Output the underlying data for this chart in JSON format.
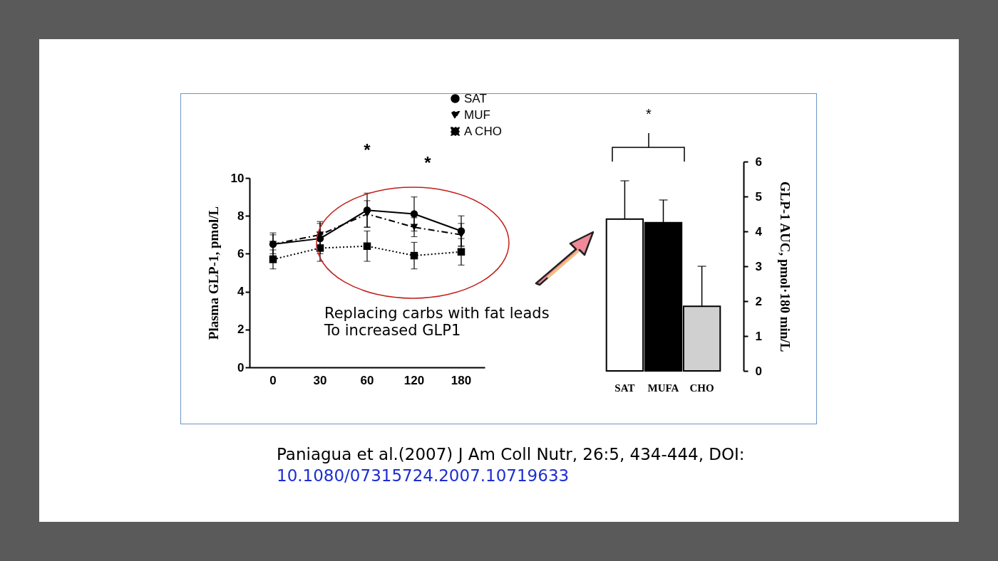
{
  "chart_data": [
    {
      "type": "line",
      "ylabel": "Plasma GLP-1, pmol/L",
      "categories": [
        "0",
        "30",
        "60",
        "120",
        "180"
      ],
      "ylim": [
        0,
        10
      ],
      "yticks": [
        0,
        2,
        4,
        6,
        8,
        10
      ],
      "grid": false,
      "legend": "top right",
      "series": [
        {
          "name": "SAT",
          "color": "#000000",
          "marker": "circle",
          "line_style": "solid",
          "values": [
            6.5,
            6.8,
            8.3,
            8.1,
            7.2
          ],
          "errors": [
            0.6,
            0.8,
            0.9,
            0.9,
            0.8
          ]
        },
        {
          "name": "MUF",
          "color": "#000000",
          "marker": "triangle",
          "line_style": "dashed",
          "values": [
            6.5,
            7.0,
            8.1,
            7.4,
            7.0
          ],
          "errors": [
            0.5,
            0.7,
            0.7,
            0.5,
            0.6
          ]
        },
        {
          "name": "A CHO",
          "color": "#000000",
          "marker": "square",
          "line_style": "dotted",
          "values": [
            5.7,
            6.3,
            6.4,
            5.9,
            6.1
          ],
          "errors": [
            0.5,
            0.7,
            0.8,
            0.7,
            0.7
          ]
        }
      ],
      "annotations": [
        "*",
        "*",
        "Replacing carbs with fat leads\nTo increased GLP1",
        "Paniagua et al.(2007) J Am Coll Nutr, 26:5, 434-444, DOI:",
        "10.1080/07315724.2007.10719633"
      ]
    },
    {
      "type": "bar",
      "ylabel": "GLP-1 AUC, pmol·180 min/L",
      "categories": [
        "SAT",
        "MUFA",
        "CHO"
      ],
      "values": [
        4.35,
        4.25,
        1.85
      ],
      "colors": [
        "#ffffff",
        "#000000",
        "#d0d0d0"
      ],
      "errors": [
        [
          4.35,
          5.45
        ],
        [
          4.25,
          4.9
        ],
        [
          1.85,
          3.0
        ]
      ],
      "ylim": [
        0,
        6
      ],
      "yticks": [
        0,
        1,
        2,
        3,
        4,
        5,
        6
      ],
      "grid": false,
      "annotations": [
        "*"
      ]
    }
  ]
}
